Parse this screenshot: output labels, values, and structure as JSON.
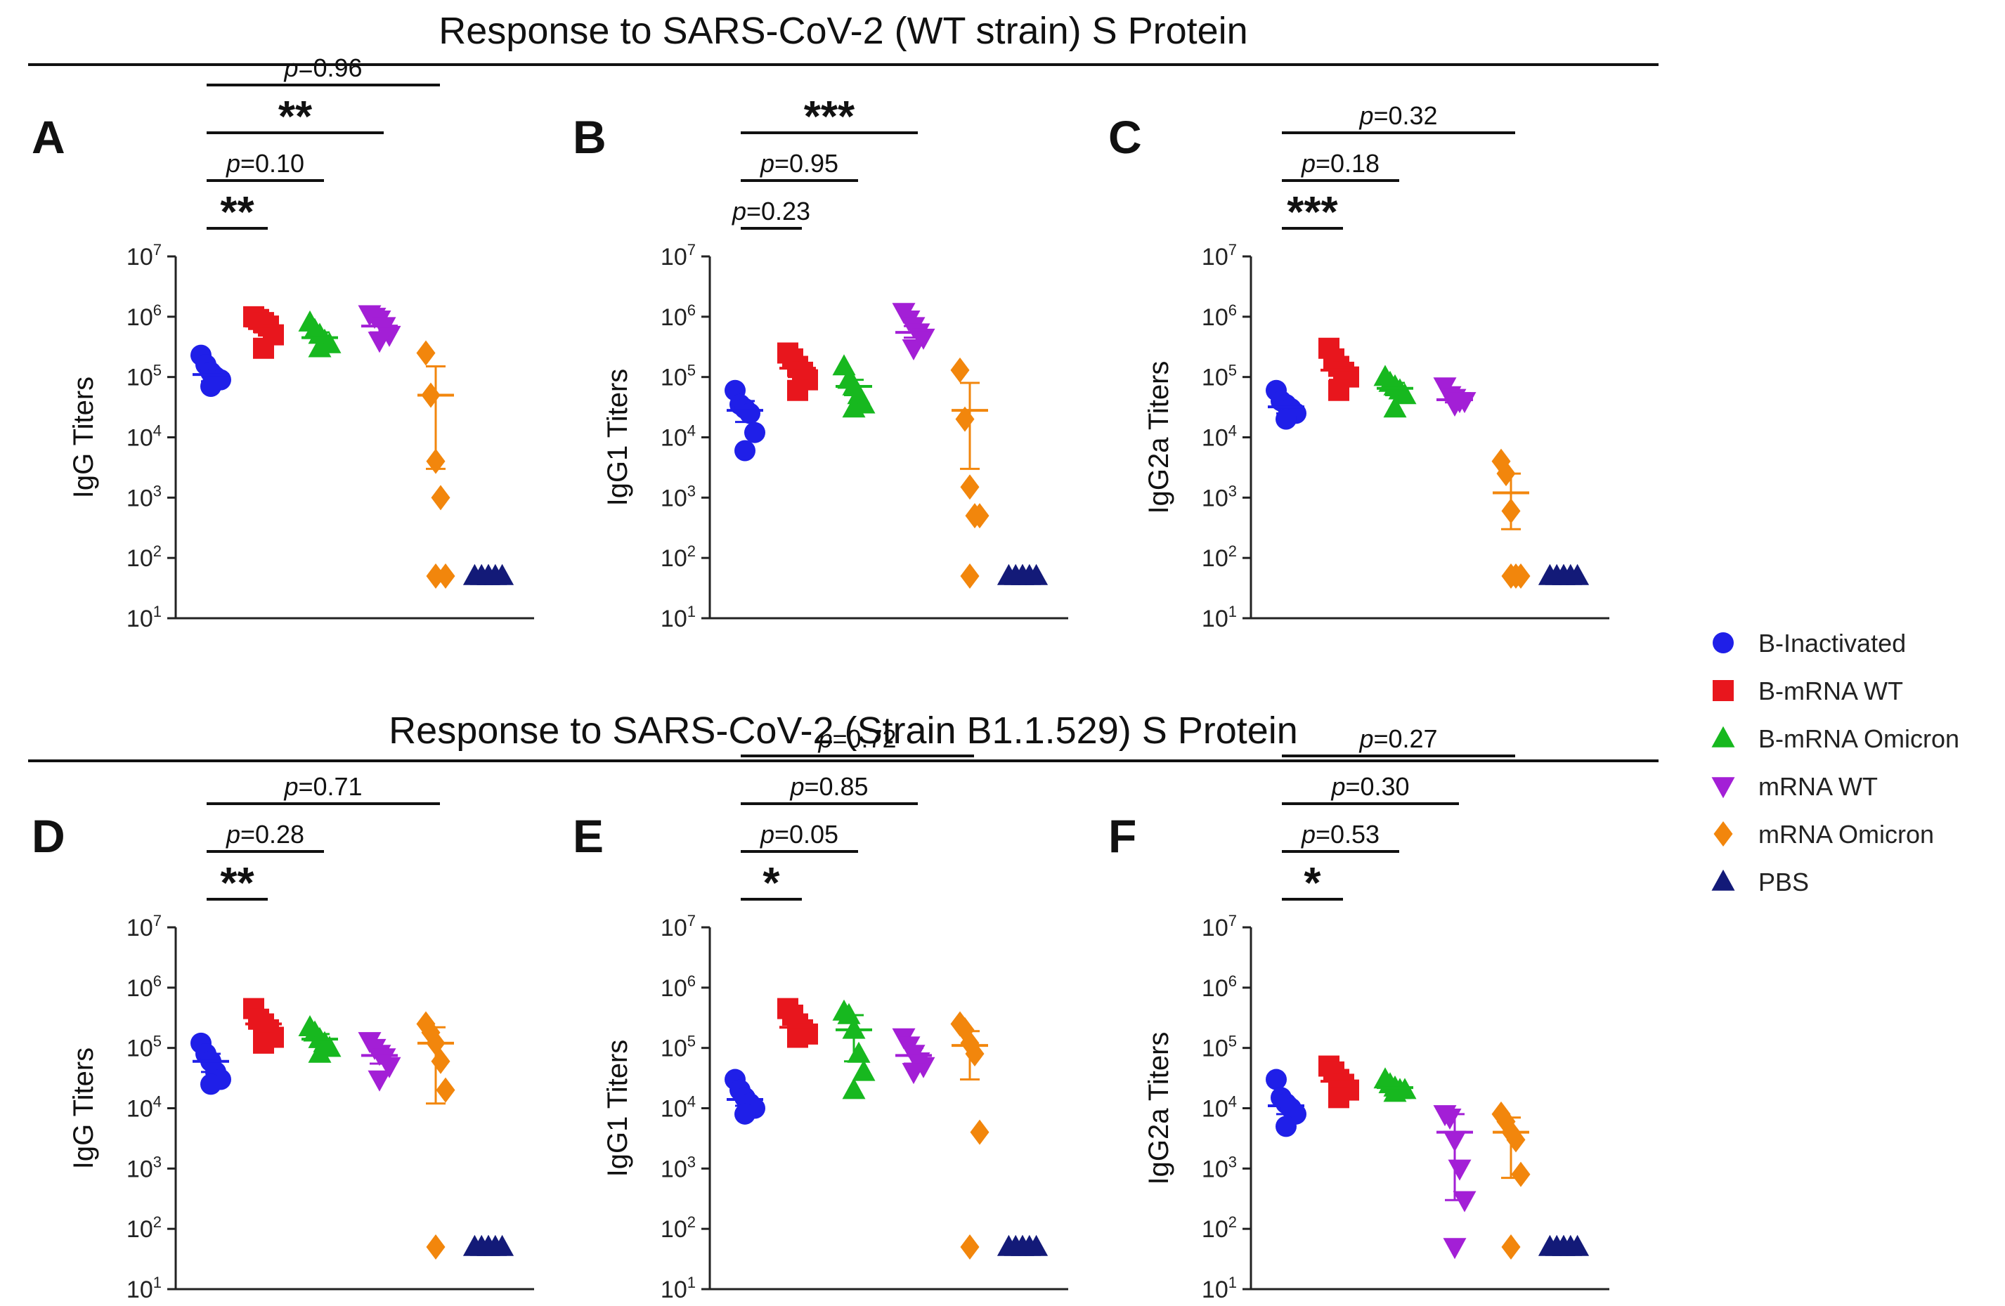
{
  "colors": {
    "B-Inactivated": "#1f1fe8",
    "B-mRNA WT": "#e8161d",
    "B-mRNA Omicron": "#17b81f",
    "mRNA WT": "#a31fd6",
    "mRNA Omicron": "#f2860c",
    "PBS": "#131a78"
  },
  "section_titles": [
    "Response to SARS-CoV-2 (WT strain) S Protein",
    "Response to SARS-CoV-2 (Strain B1.1.529) S Protein"
  ],
  "legend": {
    "items": [
      {
        "label": "B-Inactivated",
        "marker": "circle"
      },
      {
        "label": "B-mRNA WT",
        "marker": "square"
      },
      {
        "label": "B-mRNA Omicron",
        "marker": "triangle-up"
      },
      {
        "label": "mRNA WT",
        "marker": "triangle-down"
      },
      {
        "label": "mRNA Omicron",
        "marker": "diamond"
      },
      {
        "label": "PBS",
        "marker": "triangle-up"
      }
    ]
  },
  "chart_data": [
    {
      "panel": "A",
      "type": "scatter",
      "section": "Response to SARS-CoV-2 (WT strain) S Protein",
      "ylabel": "IgG Titers",
      "yscale": "log10",
      "ylim": [
        10,
        10000000
      ],
      "yticks": [
        "10^1",
        "10^2",
        "10^3",
        "10^4",
        "10^5",
        "10^6",
        "10^7"
      ],
      "groups": [
        "B-Inactivated",
        "B-mRNA WT",
        "B-mRNA Omicron",
        "mRNA WT",
        "mRNA Omicron",
        "PBS"
      ],
      "series": [
        {
          "name": "B-Inactivated",
          "values": [
            230000,
            160000,
            120000,
            100000,
            90000,
            70000
          ],
          "mean": 110000,
          "err_low": 85000,
          "err_high": 140000
        },
        {
          "name": "B-mRNA WT",
          "values": [
            1000000,
            900000,
            800000,
            700000,
            500000,
            300000
          ],
          "mean": 700000,
          "err_low": 550000,
          "err_high": 850000
        },
        {
          "name": "B-mRNA Omicron",
          "values": [
            800000,
            600000,
            500000,
            400000,
            350000,
            300000
          ],
          "mean": 450000,
          "err_low": 380000,
          "err_high": 550000
        },
        {
          "name": "mRNA WT",
          "values": [
            1100000,
            1000000,
            900000,
            700000,
            500000,
            400000
          ],
          "mean": 700000,
          "err_low": 550000,
          "err_high": 850000
        },
        {
          "name": "mRNA Omicron",
          "values": [
            250000,
            50000,
            4000,
            1000,
            50,
            50
          ],
          "mean": 50000,
          "err_low": 3000,
          "err_high": 150000
        },
        {
          "name": "PBS",
          "values": [
            50,
            50,
            50,
            50,
            50,
            50
          ],
          "mean": 50,
          "err_low": 50,
          "err_high": 50
        }
      ],
      "annotations": [
        {
          "from": "B-Inactivated",
          "to": "B-mRNA WT",
          "label": "**",
          "kind": "stars"
        },
        {
          "from": "B-Inactivated",
          "to": "B-mRNA Omicron",
          "label": "p=0.10",
          "kind": "p"
        },
        {
          "from": "B-Inactivated",
          "to": "mRNA WT",
          "label": "**",
          "kind": "stars"
        },
        {
          "from": "B-Inactivated",
          "to": "mRNA Omicron",
          "label": "p=0.96",
          "kind": "p"
        }
      ]
    },
    {
      "panel": "B",
      "type": "scatter",
      "section": "Response to SARS-CoV-2 (WT strain) S Protein",
      "ylabel": "IgG1 Titers",
      "yscale": "log10",
      "ylim": [
        10,
        10000000
      ],
      "yticks": [
        "10^1",
        "10^2",
        "10^3",
        "10^4",
        "10^5",
        "10^6",
        "10^7"
      ],
      "groups": [
        "B-Inactivated",
        "B-mRNA WT",
        "B-mRNA Omicron",
        "mRNA WT",
        "mRNA Omicron",
        "PBS"
      ],
      "series": [
        {
          "name": "B-Inactivated",
          "values": [
            60000,
            35000,
            30000,
            25000,
            12000,
            6000
          ],
          "mean": 28000,
          "err_low": 18000,
          "err_high": 40000
        },
        {
          "name": "B-mRNA WT",
          "values": [
            250000,
            200000,
            150000,
            120000,
            90000,
            60000
          ],
          "mean": 140000,
          "err_low": 100000,
          "err_high": 190000
        },
        {
          "name": "B-mRNA Omicron",
          "values": [
            150000,
            90000,
            70000,
            50000,
            35000,
            30000
          ],
          "mean": 70000,
          "err_low": 50000,
          "err_high": 90000
        },
        {
          "name": "mRNA WT",
          "values": [
            1200000,
            900000,
            700000,
            550000,
            450000,
            300000
          ],
          "mean": 550000,
          "err_low": 450000,
          "err_high": 700000
        },
        {
          "name": "mRNA Omicron",
          "values": [
            130000,
            20000,
            1500,
            500,
            500,
            50
          ],
          "mean": 28000,
          "err_low": 3000,
          "err_high": 80000
        },
        {
          "name": "PBS",
          "values": [
            50,
            50,
            50,
            50,
            50,
            50
          ],
          "mean": 50,
          "err_low": 50,
          "err_high": 50
        }
      ],
      "annotations": [
        {
          "from": "B-Inactivated",
          "to": "B-mRNA WT",
          "label": "p=0.23",
          "kind": "p"
        },
        {
          "from": "B-Inactivated",
          "to": "B-mRNA Omicron",
          "label": "p=0.95",
          "kind": "p"
        },
        {
          "from": "B-Inactivated",
          "to": "mRNA WT",
          "label": "***",
          "kind": "stars"
        }
      ]
    },
    {
      "panel": "C",
      "type": "scatter",
      "section": "Response to SARS-CoV-2 (WT strain) S Protein",
      "ylabel": "IgG2a Titers",
      "yscale": "log10",
      "ylim": [
        10,
        10000000
      ],
      "yticks": [
        "10^1",
        "10^2",
        "10^3",
        "10^4",
        "10^5",
        "10^6",
        "10^7"
      ],
      "groups": [
        "B-Inactivated",
        "B-mRNA WT",
        "B-mRNA Omicron",
        "mRNA WT",
        "mRNA Omicron",
        "PBS"
      ],
      "series": [
        {
          "name": "B-Inactivated",
          "values": [
            60000,
            40000,
            35000,
            30000,
            25000,
            20000
          ],
          "mean": 32000,
          "err_low": 25000,
          "err_high": 40000
        },
        {
          "name": "B-mRNA WT",
          "values": [
            300000,
            200000,
            150000,
            120000,
            100000,
            60000
          ],
          "mean": 130000,
          "err_low": 90000,
          "err_high": 180000
        },
        {
          "name": "B-mRNA Omicron",
          "values": [
            100000,
            80000,
            70000,
            60000,
            50000,
            30000
          ],
          "mean": 65000,
          "err_low": 50000,
          "err_high": 80000
        },
        {
          "name": "mRNA WT",
          "values": [
            70000,
            50000,
            45000,
            40000,
            40000,
            35000
          ],
          "mean": 42000,
          "err_low": 38000,
          "err_high": 48000
        },
        {
          "name": "mRNA Omicron",
          "values": [
            4000,
            2500,
            600,
            50,
            50,
            50
          ],
          "mean": 1200,
          "err_low": 300,
          "err_high": 2500
        },
        {
          "name": "PBS",
          "values": [
            50,
            50,
            50,
            50,
            50,
            50
          ],
          "mean": 50,
          "err_low": 50,
          "err_high": 50
        }
      ],
      "annotations": [
        {
          "from": "B-Inactivated",
          "to": "B-mRNA WT",
          "label": "***",
          "kind": "stars"
        },
        {
          "from": "B-Inactivated",
          "to": "B-mRNA Omicron",
          "label": "p=0.18",
          "kind": "p"
        },
        {
          "from": "B-Inactivated",
          "to": "mRNA Omicron",
          "label": "p=0.32",
          "kind": "p"
        }
      ]
    },
    {
      "panel": "D",
      "type": "scatter",
      "section": "Response to SARS-CoV-2 (Strain B1.1.529) S Protein",
      "ylabel": "IgG Titers",
      "yscale": "log10",
      "ylim": [
        10,
        10000000
      ],
      "yticks": [
        "10^1",
        "10^2",
        "10^3",
        "10^4",
        "10^5",
        "10^6",
        "10^7"
      ],
      "groups": [
        "B-Inactivated",
        "B-mRNA WT",
        "B-mRNA Omicron",
        "mRNA WT",
        "mRNA Omicron",
        "PBS"
      ],
      "series": [
        {
          "name": "B-Inactivated",
          "values": [
            120000,
            80000,
            60000,
            40000,
            30000,
            25000
          ],
          "mean": 60000,
          "err_low": 40000,
          "err_high": 80000
        },
        {
          "name": "B-mRNA WT",
          "values": [
            450000,
            300000,
            250000,
            200000,
            150000,
            120000
          ],
          "mean": 250000,
          "err_low": 180000,
          "err_high": 320000
        },
        {
          "name": "B-mRNA Omicron",
          "values": [
            220000,
            180000,
            140000,
            120000,
            100000,
            80000
          ],
          "mean": 140000,
          "err_low": 110000,
          "err_high": 170000
        },
        {
          "name": "mRNA WT",
          "values": [
            130000,
            100000,
            80000,
            70000,
            50000,
            30000
          ],
          "mean": 75000,
          "err_low": 55000,
          "err_high": 100000
        },
        {
          "name": "mRNA Omicron",
          "values": [
            250000,
            180000,
            120000,
            60000,
            20000,
            50
          ],
          "mean": 120000,
          "err_low": 12000,
          "err_high": 220000
        },
        {
          "name": "PBS",
          "values": [
            50,
            50,
            50,
            50,
            50,
            50
          ],
          "mean": 50,
          "err_low": 50,
          "err_high": 50
        }
      ],
      "annotations": [
        {
          "from": "B-Inactivated",
          "to": "B-mRNA WT",
          "label": "**",
          "kind": "stars"
        },
        {
          "from": "B-Inactivated",
          "to": "B-mRNA Omicron",
          "label": "p=0.28",
          "kind": "p"
        },
        {
          "from": "B-Inactivated",
          "to": "mRNA Omicron",
          "label": "p=0.71",
          "kind": "p"
        }
      ]
    },
    {
      "panel": "E",
      "type": "scatter",
      "section": "Response to SARS-CoV-2 (Strain B1.1.529) S Protein",
      "ylabel": "IgG1 Titers",
      "yscale": "log10",
      "ylim": [
        10,
        10000000
      ],
      "yticks": [
        "10^1",
        "10^2",
        "10^3",
        "10^4",
        "10^5",
        "10^6",
        "10^7"
      ],
      "groups": [
        "B-Inactivated",
        "B-mRNA WT",
        "B-mRNA Omicron",
        "mRNA WT",
        "mRNA Omicron",
        "PBS"
      ],
      "series": [
        {
          "name": "B-Inactivated",
          "values": [
            30000,
            20000,
            15000,
            12000,
            10000,
            8000
          ],
          "mean": 14000,
          "err_low": 11000,
          "err_high": 17000
        },
        {
          "name": "B-mRNA WT",
          "values": [
            450000,
            350000,
            250000,
            200000,
            170000,
            150000
          ],
          "mean": 220000,
          "err_low": 180000,
          "err_high": 260000
        },
        {
          "name": "B-mRNA Omicron",
          "values": [
            400000,
            350000,
            200000,
            80000,
            40000,
            20000
          ],
          "mean": 200000,
          "err_low": 60000,
          "err_high": 350000
        },
        {
          "name": "mRNA WT",
          "values": [
            150000,
            110000,
            80000,
            60000,
            50000,
            40000
          ],
          "mean": 75000,
          "err_low": 55000,
          "err_high": 100000
        },
        {
          "name": "mRNA Omicron",
          "values": [
            250000,
            200000,
            120000,
            80000,
            4000,
            50
          ],
          "mean": 110000,
          "err_low": 30000,
          "err_high": 190000
        },
        {
          "name": "PBS",
          "values": [
            50,
            50,
            50,
            50,
            50,
            50
          ],
          "mean": 50,
          "err_low": 50,
          "err_high": 50
        }
      ],
      "annotations": [
        {
          "from": "B-Inactivated",
          "to": "B-mRNA WT",
          "label": "*",
          "kind": "stars"
        },
        {
          "from": "B-Inactivated",
          "to": "B-mRNA Omicron",
          "label": "p=0.05",
          "kind": "p"
        },
        {
          "from": "B-Inactivated",
          "to": "mRNA WT",
          "label": "p=0.85",
          "kind": "p"
        },
        {
          "from": "B-Inactivated",
          "to": "mRNA Omicron",
          "label": "p=0.72",
          "kind": "p"
        }
      ]
    },
    {
      "panel": "F",
      "type": "scatter",
      "section": "Response to SARS-CoV-2 (Strain B1.1.529) S Protein",
      "ylabel": "IgG2a Titers",
      "yscale": "log10",
      "ylim": [
        10,
        10000000
      ],
      "yticks": [
        "10^1",
        "10^2",
        "10^3",
        "10^4",
        "10^5",
        "10^6",
        "10^7"
      ],
      "groups": [
        "B-Inactivated",
        "B-mRNA WT",
        "B-mRNA Omicron",
        "mRNA WT",
        "mRNA Omicron",
        "PBS"
      ],
      "series": [
        {
          "name": "B-Inactivated",
          "values": [
            30000,
            15000,
            12000,
            10000,
            8000,
            5000
          ],
          "mean": 11000,
          "err_low": 8000,
          "err_high": 14000
        },
        {
          "name": "B-mRNA WT",
          "values": [
            50000,
            40000,
            30000,
            25000,
            20000,
            15000
          ],
          "mean": 28000,
          "err_low": 20000,
          "err_high": 36000
        },
        {
          "name": "B-mRNA Omicron",
          "values": [
            30000,
            25000,
            22000,
            20000,
            20000,
            18000
          ],
          "mean": 22000,
          "err_low": 19000,
          "err_high": 25000
        },
        {
          "name": "mRNA WT",
          "values": [
            8000,
            7000,
            3000,
            1000,
            300,
            50
          ],
          "mean": 4000,
          "err_low": 300,
          "err_high": 8000
        },
        {
          "name": "mRNA Omicron",
          "values": [
            8000,
            6000,
            4000,
            3000,
            800,
            50
          ],
          "mean": 4000,
          "err_low": 700,
          "err_high": 7000
        },
        {
          "name": "PBS",
          "values": [
            50,
            50,
            50,
            50,
            50,
            50
          ],
          "mean": 50,
          "err_low": 50,
          "err_high": 50
        }
      ],
      "annotations": [
        {
          "from": "B-Inactivated",
          "to": "B-mRNA WT",
          "label": "*",
          "kind": "stars"
        },
        {
          "from": "B-Inactivated",
          "to": "B-mRNA Omicron",
          "label": "p=0.53",
          "kind": "p"
        },
        {
          "from": "B-Inactivated",
          "to": "mRNA WT",
          "label": "p=0.30",
          "kind": "p"
        },
        {
          "from": "B-Inactivated",
          "to": "mRNA Omicron",
          "label": "p=0.27",
          "kind": "p"
        }
      ]
    }
  ]
}
